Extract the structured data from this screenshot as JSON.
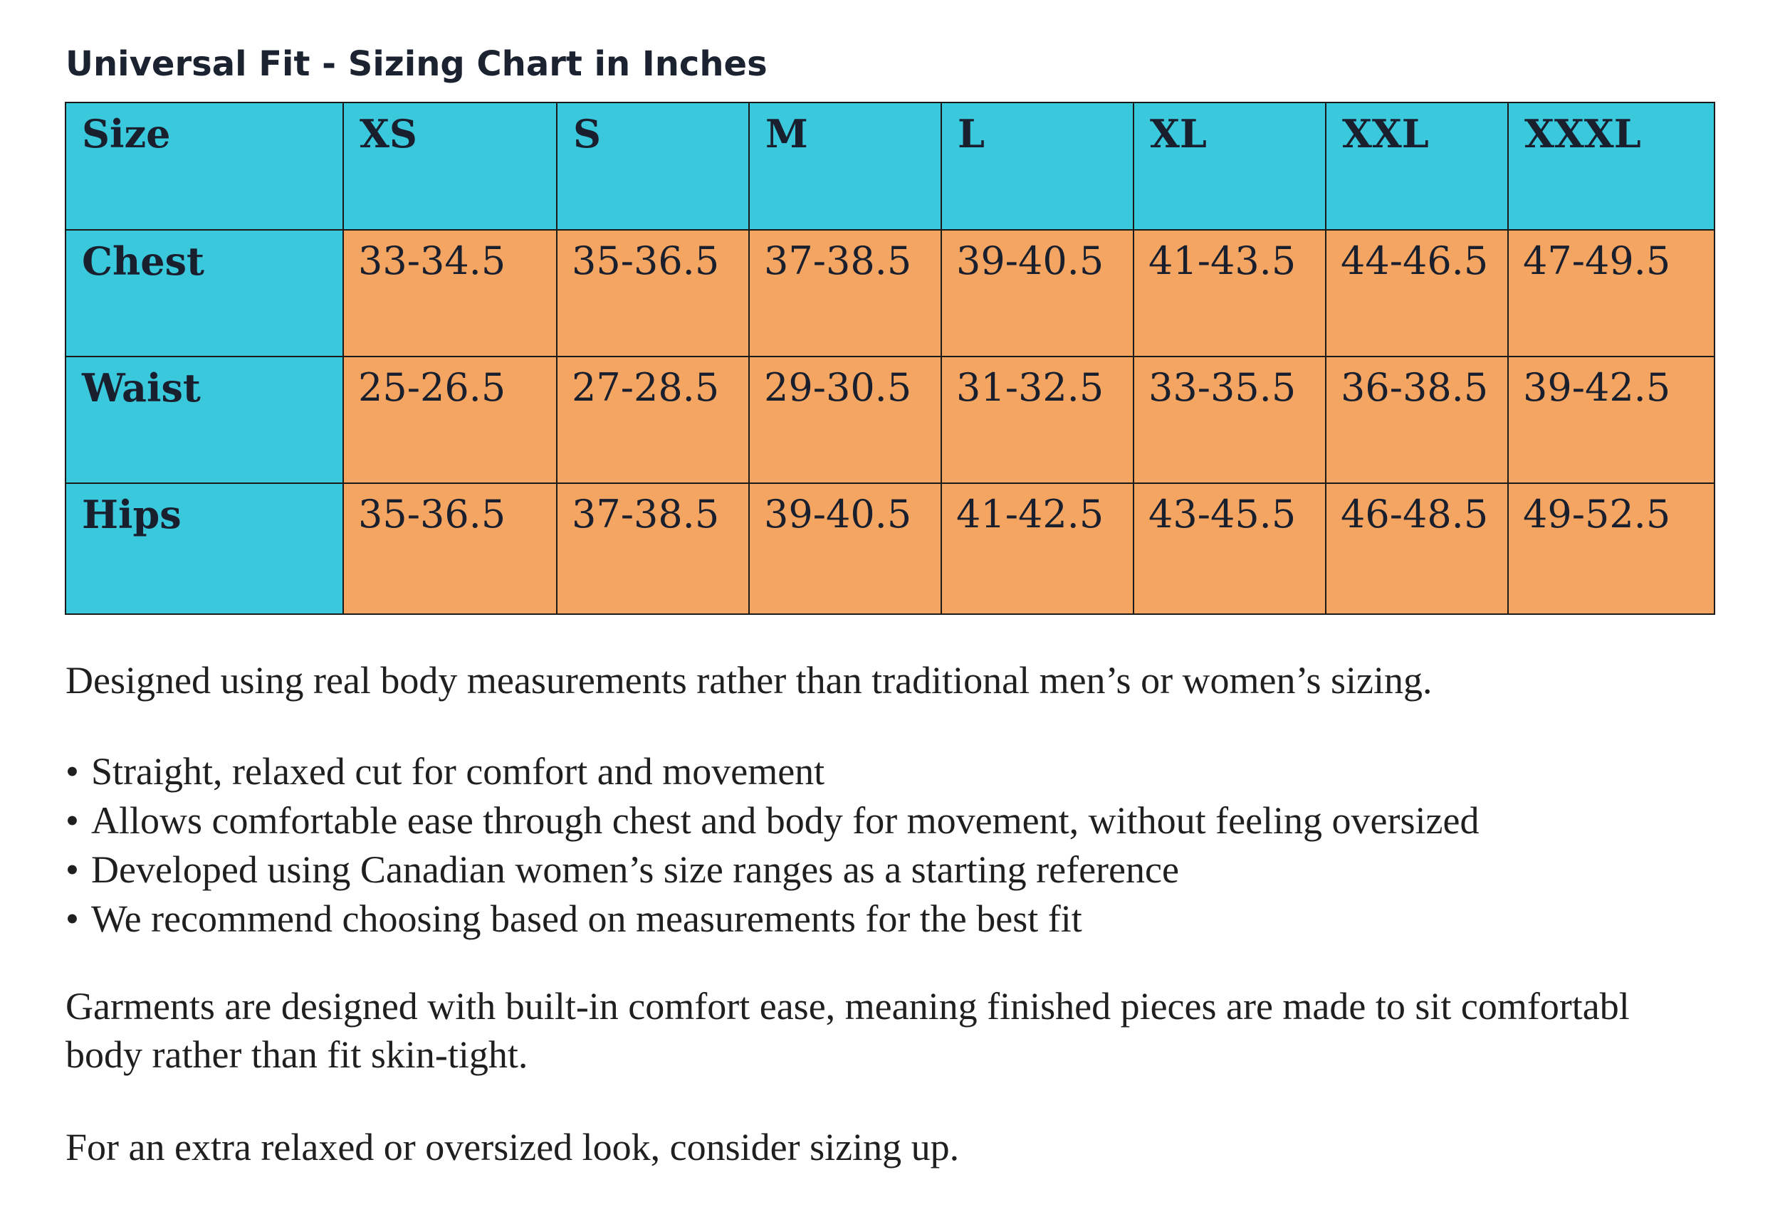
{
  "document": {
    "title": "Universal Fit - Sizing Chart in Inches",
    "table": {
      "header_label": "Size",
      "sizes": [
        "XS",
        "S",
        "M",
        "L",
        "XL",
        "XXL",
        "XXXL"
      ],
      "rows": [
        {
          "label": "Chest",
          "values": [
            "33-34.5",
            "35-36.5",
            "37-38.5",
            "39-40.5",
            "41-43.5",
            "44-46.5",
            "47-49.5"
          ]
        },
        {
          "label": "Waist",
          "values": [
            "25-26.5",
            "27-28.5",
            "29-30.5",
            "31-32.5",
            "33-35.5",
            "36-38.5",
            "39-42.5"
          ]
        },
        {
          "label": "Hips",
          "values": [
            "35-36.5",
            "37-38.5",
            "39-40.5",
            "41-42.5",
            "43-45.5",
            "46-48.5",
            "49-52.5"
          ]
        }
      ],
      "colors": {
        "header_fill": "#3ac8dc",
        "value_fill": "#f4a562",
        "border": "#1a1a1a"
      }
    },
    "intro": "Designed using real body measurements rather than traditional men’s or women’s sizing.",
    "bullet_symbol": "•",
    "bullets": [
      "Straight, relaxed cut for comfort and movement",
      "Allows comfortable ease through chest and body for movement, without feeling oversized",
      "Developed using Canadian women’s size ranges as a starting reference",
      "We recommend choosing based on measurements for the best fit"
    ],
    "ease_line1": "Garments are designed with built-in comfort ease, meaning finished pieces are made to sit comfortabl",
    "ease_line2": "body rather than fit skin-tight.",
    "closing": "For an extra relaxed or oversized look, consider sizing up."
  }
}
